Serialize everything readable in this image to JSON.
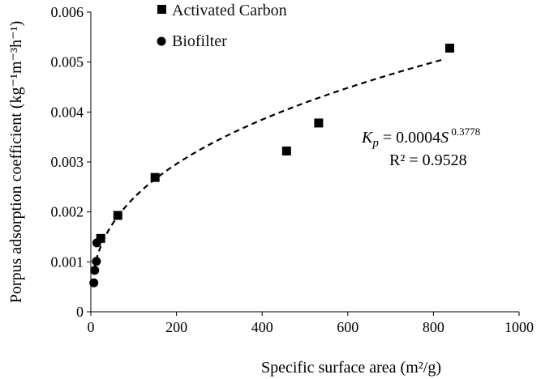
{
  "chart_data": {
    "type": "scatter",
    "xlabel": "Specific surface area (m²/g)",
    "ylabel": "Porpus adsorption coefficient (kg⁻¹m⁻³h⁻¹)",
    "xlim": [
      0,
      1000
    ],
    "ylim": [
      0,
      0.006
    ],
    "x_ticks": [
      0,
      200,
      400,
      600,
      800,
      1000
    ],
    "y_ticks": [
      "0",
      "0.001",
      "0.002",
      "0.003",
      "0.004",
      "0.005",
      "0.006"
    ],
    "grid": false,
    "legend_position": "top-left",
    "series": [
      {
        "name": "Activated Carbon",
        "marker": "square",
        "color": "#000000",
        "points": [
          [
            23,
            0.00147
          ],
          [
            63,
            0.00193
          ],
          [
            150,
            0.00269
          ],
          [
            457,
            0.00322
          ],
          [
            532,
            0.00378
          ],
          [
            838,
            0.00528
          ]
        ]
      },
      {
        "name": "Biofilter",
        "marker": "circle",
        "color": "#000000",
        "points": [
          [
            7,
            0.00058
          ],
          [
            9,
            0.00083
          ],
          [
            13,
            0.00101
          ],
          [
            14,
            0.00138
          ]
        ]
      }
    ],
    "trendline": {
      "style": "dashed",
      "color": "#000000",
      "coefficient": 0.0004,
      "exponent": 0.3778,
      "x_range": [
        7,
        820
      ]
    },
    "annotation": {
      "var": "K",
      "sub": "p",
      "rhs": " = 0.0004",
      "svar": "S",
      "exp": " 0.3778",
      "r2": "R² = 0.9528"
    }
  }
}
